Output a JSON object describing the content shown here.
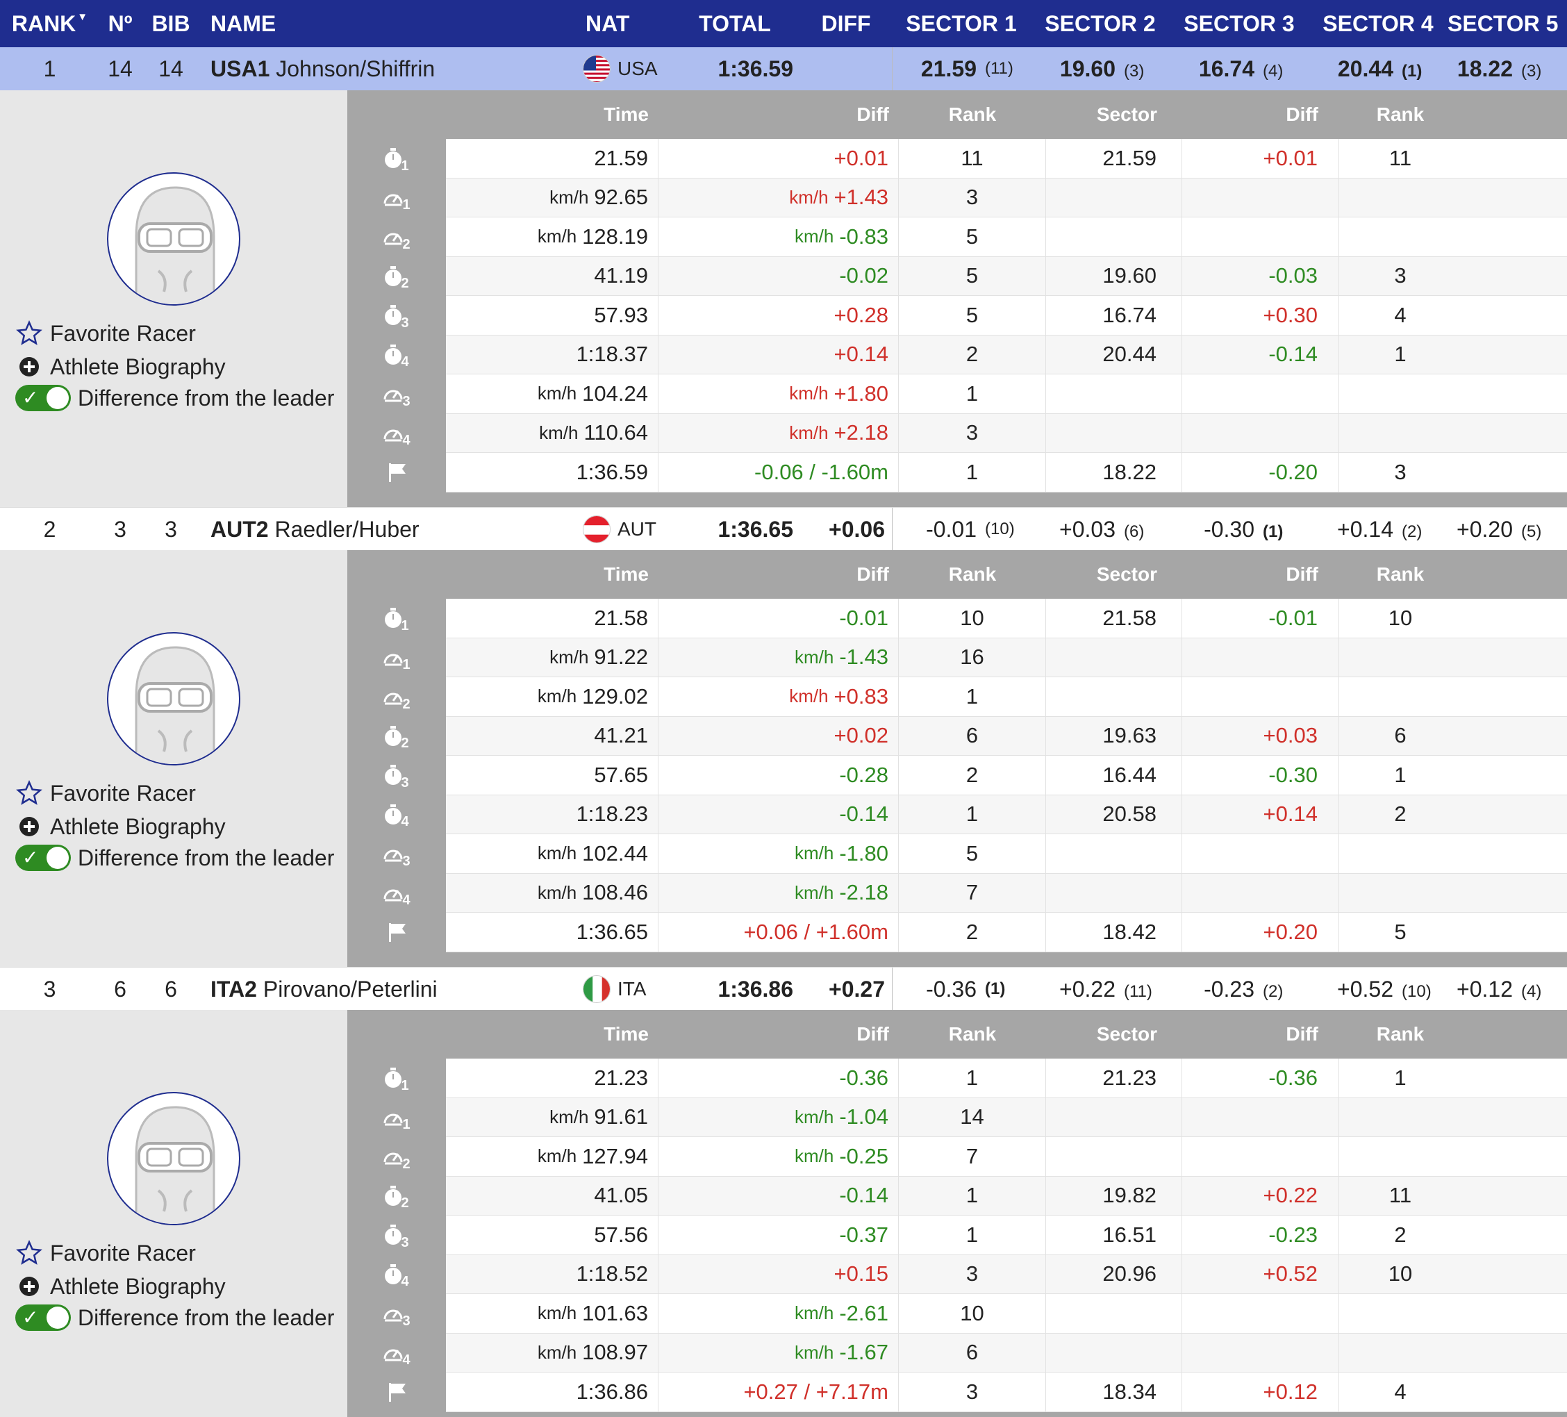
{
  "header": {
    "rank": "RANK",
    "no": "Nº",
    "bib": "BIB",
    "name": "NAME",
    "nat": "NAT",
    "total": "TOTAL",
    "diff": "DIFF",
    "sector1": "SECTOR 1",
    "sector2": "SECTOR 2",
    "sector3": "SECTOR 3",
    "sector4": "SECTOR 4",
    "sector5": "SECTOR 5"
  },
  "sub_header": {
    "time": "Time",
    "diff": "Diff",
    "rank": "Rank",
    "sector": "Sector",
    "sector_diff": "Diff",
    "sector_rank": "Rank"
  },
  "options": {
    "favorite": "Favorite Racer",
    "biography": "Athlete Biography",
    "difference": "Difference from the leader"
  },
  "racers": [
    {
      "rank": "1",
      "no": "14",
      "bib": "14",
      "team": "USA1",
      "names": "Johnson/Shiffrin",
      "nat": "USA",
      "total": "1:36.59",
      "diff": "",
      "sectors": [
        {
          "value": "21.59",
          "rank": "(11)"
        },
        {
          "value": "19.60",
          "rank": "(3)"
        },
        {
          "value": "16.74",
          "rank": "(4)"
        },
        {
          "value": "20.44",
          "rank": "(1)"
        },
        {
          "value": "18.22",
          "rank": "(3)"
        }
      ],
      "splits": [
        {
          "icon": "timer",
          "idx": "1",
          "unit": "",
          "time": "21.59",
          "dunit": "",
          "diff": "+0.01",
          "rank": "11",
          "sector": "21.59",
          "sdiff": "+0.01",
          "srank": "11"
        },
        {
          "icon": "speed",
          "idx": "1",
          "unit": "km/h",
          "time": "92.65",
          "dunit": "km/h",
          "diff": "+1.43",
          "rank": "3",
          "sector": "",
          "sdiff": "",
          "srank": ""
        },
        {
          "icon": "speed",
          "idx": "2",
          "unit": "km/h",
          "time": "128.19",
          "dunit": "km/h",
          "diff": "-0.83",
          "rank": "5",
          "sector": "",
          "sdiff": "",
          "srank": ""
        },
        {
          "icon": "timer",
          "idx": "2",
          "unit": "",
          "time": "41.19",
          "dunit": "",
          "diff": "-0.02",
          "rank": "5",
          "sector": "19.60",
          "sdiff": "-0.03",
          "srank": "3"
        },
        {
          "icon": "timer",
          "idx": "3",
          "unit": "",
          "time": "57.93",
          "dunit": "",
          "diff": "+0.28",
          "rank": "5",
          "sector": "16.74",
          "sdiff": "+0.30",
          "srank": "4"
        },
        {
          "icon": "timer",
          "idx": "4",
          "unit": "",
          "time": "1:18.37",
          "dunit": "",
          "diff": "+0.14",
          "rank": "2",
          "sector": "20.44",
          "sdiff": "-0.14",
          "srank": "1"
        },
        {
          "icon": "speed",
          "idx": "3",
          "unit": "km/h",
          "time": "104.24",
          "dunit": "km/h",
          "diff": "+1.80",
          "rank": "1",
          "sector": "",
          "sdiff": "",
          "srank": ""
        },
        {
          "icon": "speed",
          "idx": "4",
          "unit": "km/h",
          "time": "110.64",
          "dunit": "km/h",
          "diff": "+2.18",
          "rank": "3",
          "sector": "",
          "sdiff": "",
          "srank": ""
        },
        {
          "icon": "flag",
          "idx": "",
          "unit": "",
          "time": "1:36.59",
          "dunit": "",
          "diff": "-0.06 / -1.60m",
          "rank": "1",
          "sector": "18.22",
          "sdiff": "-0.20",
          "srank": "3"
        }
      ]
    },
    {
      "rank": "2",
      "no": "3",
      "bib": "3",
      "team": "AUT2",
      "names": "Raedler/Huber",
      "nat": "AUT",
      "total": "1:36.65",
      "diff": "+0.06",
      "sectors": [
        {
          "value": "-0.01",
          "rank": "(10)"
        },
        {
          "value": "+0.03",
          "rank": "(6)"
        },
        {
          "value": "-0.30",
          "rank": "(1)"
        },
        {
          "value": "+0.14",
          "rank": "(2)"
        },
        {
          "value": "+0.20",
          "rank": "(5)"
        }
      ],
      "splits": [
        {
          "icon": "timer",
          "idx": "1",
          "unit": "",
          "time": "21.58",
          "dunit": "",
          "diff": "-0.01",
          "rank": "10",
          "sector": "21.58",
          "sdiff": "-0.01",
          "srank": "10"
        },
        {
          "icon": "speed",
          "idx": "1",
          "unit": "km/h",
          "time": "91.22",
          "dunit": "km/h",
          "diff": "-1.43",
          "rank": "16",
          "sector": "",
          "sdiff": "",
          "srank": ""
        },
        {
          "icon": "speed",
          "idx": "2",
          "unit": "km/h",
          "time": "129.02",
          "dunit": "km/h",
          "diff": "+0.83",
          "rank": "1",
          "sector": "",
          "sdiff": "",
          "srank": ""
        },
        {
          "icon": "timer",
          "idx": "2",
          "unit": "",
          "time": "41.21",
          "dunit": "",
          "diff": "+0.02",
          "rank": "6",
          "sector": "19.63",
          "sdiff": "+0.03",
          "srank": "6"
        },
        {
          "icon": "timer",
          "idx": "3",
          "unit": "",
          "time": "57.65",
          "dunit": "",
          "diff": "-0.28",
          "rank": "2",
          "sector": "16.44",
          "sdiff": "-0.30",
          "srank": "1"
        },
        {
          "icon": "timer",
          "idx": "4",
          "unit": "",
          "time": "1:18.23",
          "dunit": "",
          "diff": "-0.14",
          "rank": "1",
          "sector": "20.58",
          "sdiff": "+0.14",
          "srank": "2"
        },
        {
          "icon": "speed",
          "idx": "3",
          "unit": "km/h",
          "time": "102.44",
          "dunit": "km/h",
          "diff": "-1.80",
          "rank": "5",
          "sector": "",
          "sdiff": "",
          "srank": ""
        },
        {
          "icon": "speed",
          "idx": "4",
          "unit": "km/h",
          "time": "108.46",
          "dunit": "km/h",
          "diff": "-2.18",
          "rank": "7",
          "sector": "",
          "sdiff": "",
          "srank": ""
        },
        {
          "icon": "flag",
          "idx": "",
          "unit": "",
          "time": "1:36.65",
          "dunit": "",
          "diff": "+0.06 / +1.60m",
          "rank": "2",
          "sector": "18.42",
          "sdiff": "+0.20",
          "srank": "5"
        }
      ]
    },
    {
      "rank": "3",
      "no": "6",
      "bib": "6",
      "team": "ITA2",
      "names": "Pirovano/Peterlini",
      "nat": "ITA",
      "total": "1:36.86",
      "diff": "+0.27",
      "sectors": [
        {
          "value": "-0.36",
          "rank": "(1)"
        },
        {
          "value": "+0.22",
          "rank": "(11)"
        },
        {
          "value": "-0.23",
          "rank": "(2)"
        },
        {
          "value": "+0.52",
          "rank": "(10)"
        },
        {
          "value": "+0.12",
          "rank": "(4)"
        }
      ],
      "splits": [
        {
          "icon": "timer",
          "idx": "1",
          "unit": "",
          "time": "21.23",
          "dunit": "",
          "diff": "-0.36",
          "rank": "1",
          "sector": "21.23",
          "sdiff": "-0.36",
          "srank": "1"
        },
        {
          "icon": "speed",
          "idx": "1",
          "unit": "km/h",
          "time": "91.61",
          "dunit": "km/h",
          "diff": "-1.04",
          "rank": "14",
          "sector": "",
          "sdiff": "",
          "srank": ""
        },
        {
          "icon": "speed",
          "idx": "2",
          "unit": "km/h",
          "time": "127.94",
          "dunit": "km/h",
          "diff": "-0.25",
          "rank": "7",
          "sector": "",
          "sdiff": "",
          "srank": ""
        },
        {
          "icon": "timer",
          "idx": "2",
          "unit": "",
          "time": "41.05",
          "dunit": "",
          "diff": "-0.14",
          "rank": "1",
          "sector": "19.82",
          "sdiff": "+0.22",
          "srank": "11"
        },
        {
          "icon": "timer",
          "idx": "3",
          "unit": "",
          "time": "57.56",
          "dunit": "",
          "diff": "-0.37",
          "rank": "1",
          "sector": "16.51",
          "sdiff": "-0.23",
          "srank": "2"
        },
        {
          "icon": "timer",
          "idx": "4",
          "unit": "",
          "time": "1:18.52",
          "dunit": "",
          "diff": "+0.15",
          "rank": "3",
          "sector": "20.96",
          "sdiff": "+0.52",
          "srank": "10"
        },
        {
          "icon": "speed",
          "idx": "3",
          "unit": "km/h",
          "time": "101.63",
          "dunit": "km/h",
          "diff": "-2.61",
          "rank": "10",
          "sector": "",
          "sdiff": "",
          "srank": ""
        },
        {
          "icon": "speed",
          "idx": "4",
          "unit": "km/h",
          "time": "108.97",
          "dunit": "km/h",
          "diff": "-1.67",
          "rank": "6",
          "sector": "",
          "sdiff": "",
          "srank": ""
        },
        {
          "icon": "flag",
          "idx": "",
          "unit": "",
          "time": "1:36.86",
          "dunit": "",
          "diff": "+0.27 / +7.17m",
          "rank": "3",
          "sector": "18.34",
          "sdiff": "+0.12",
          "srank": "4"
        }
      ]
    }
  ],
  "colors": {
    "header_bg": "#1f2d8f",
    "selected_row": "#aebef0",
    "positive": "#d0302a",
    "negative": "#2e8b22",
    "panel_gray": "#a6a6a6"
  }
}
